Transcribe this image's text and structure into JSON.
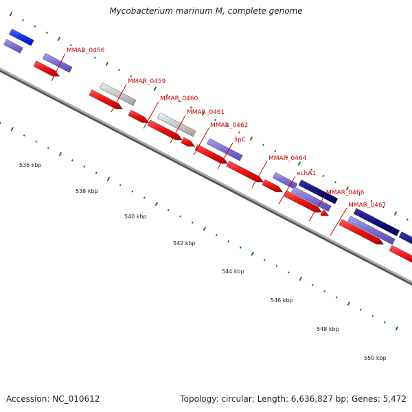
{
  "title": "Mycobacterium marinum M, complete genome",
  "footer": {
    "accession": "Accession: NC_010612",
    "summary": "Topology: circular; Length: 6,636,827 bp; Genes: 5,472"
  },
  "colors": {
    "backbone": "#888888",
    "ticks": "#1a7a1a",
    "gene_label": "#cc0000",
    "red_gene": "#ee1111",
    "lilac_gene": "#7b6fd6",
    "navy_gene": "#10107a",
    "blue_gene": "#1030ee",
    "grey_gene": "#c8c8c8"
  },
  "kbp_labels": [
    "536 kbp",
    "538 kbp",
    "540 kbp",
    "542 kbp",
    "544 kbp",
    "546 kbp",
    "548 kbp",
    "550 kbp"
  ],
  "gene_labels": [
    "MMAR_0456",
    "MMAR_0459",
    "MMAR_0460",
    "MMAR_0461",
    "MMAR_0462",
    "lipC",
    "MMAR_0464",
    "echA1",
    "MMAR_0466",
    "MMAR_0467"
  ]
}
